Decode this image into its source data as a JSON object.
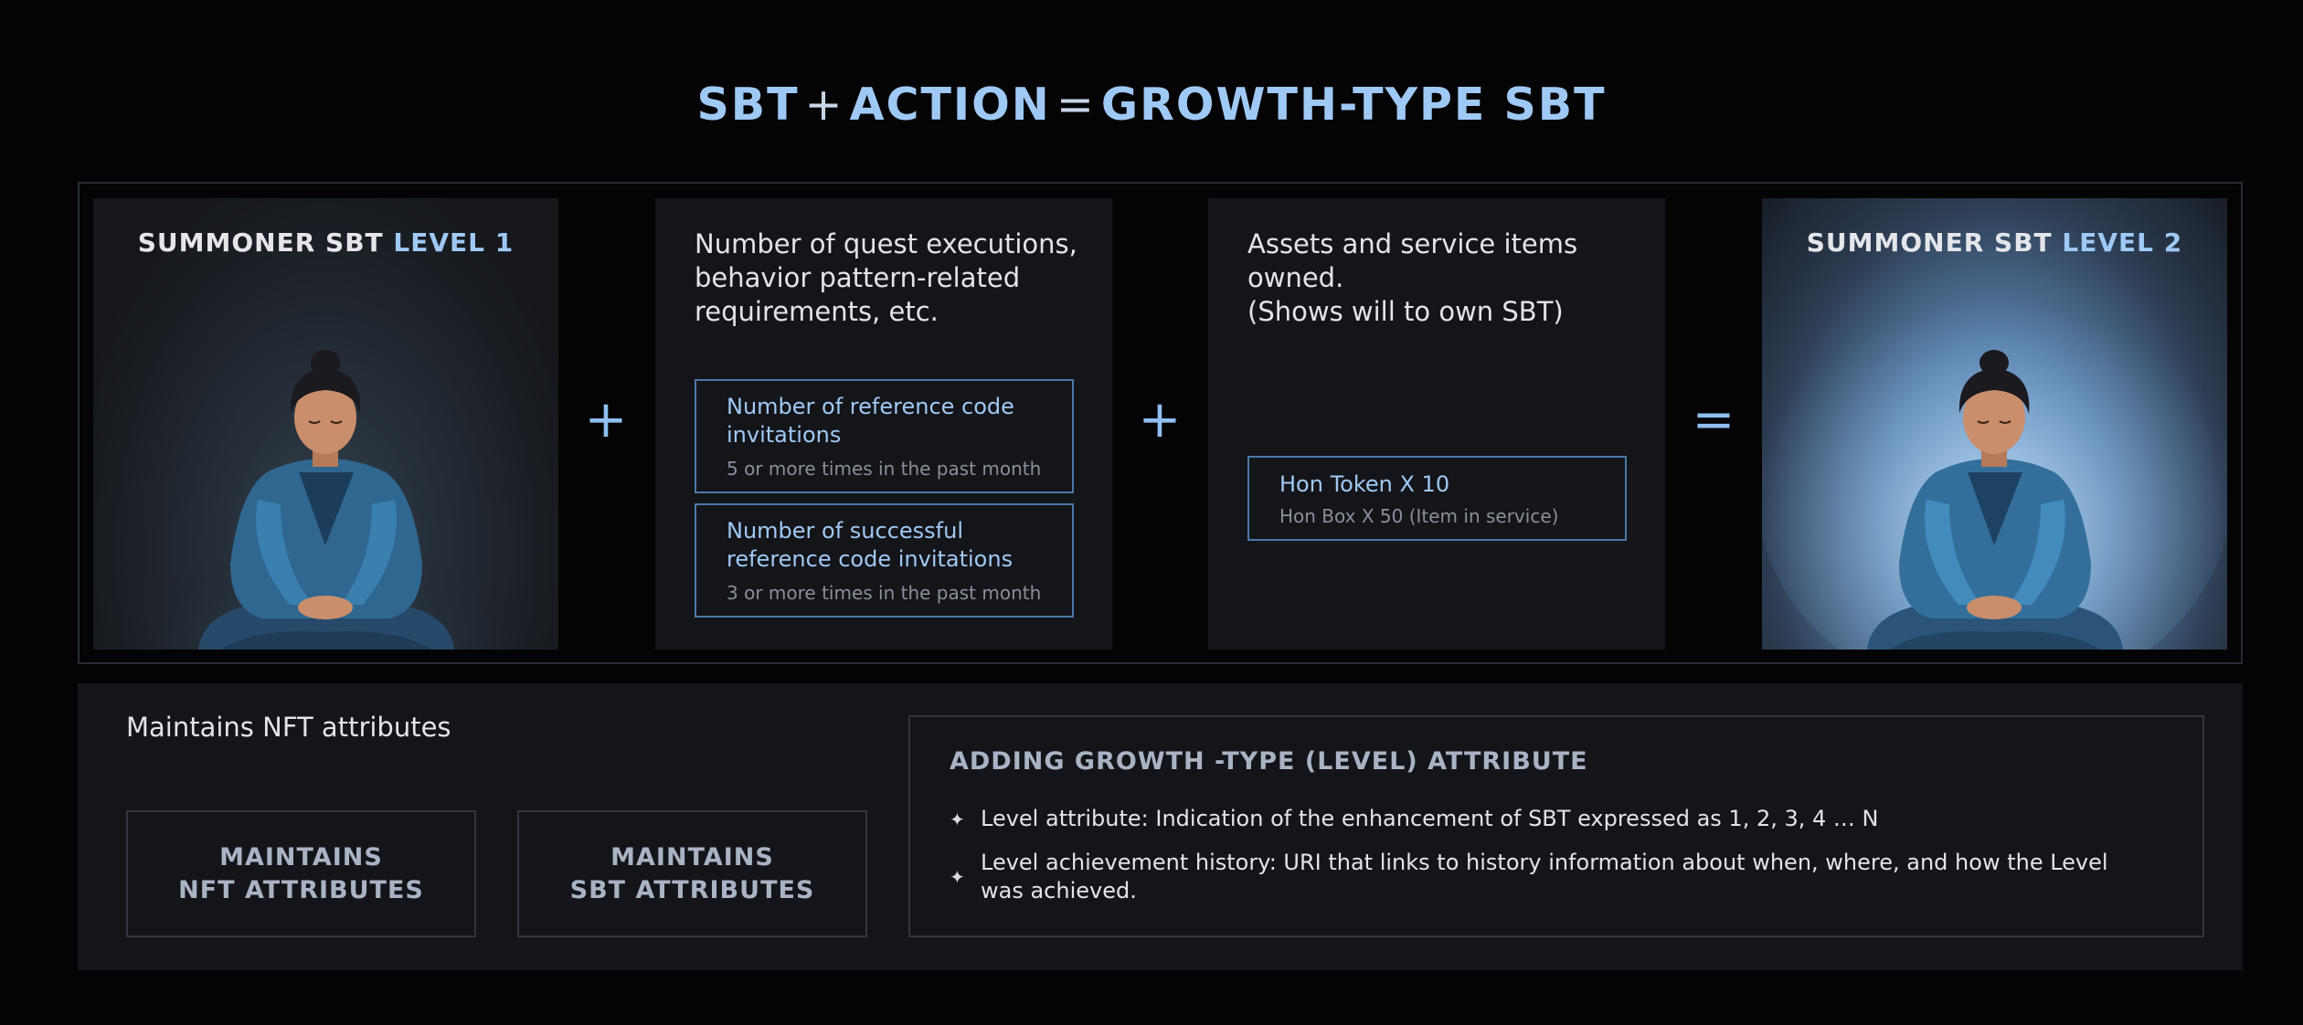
{
  "title": {
    "part1": "SBT",
    "op1": "+",
    "part2": "ACTION",
    "op2": "=",
    "part3": "GROWTH-TYPE SBT"
  },
  "cards": {
    "level1": {
      "title_prefix": "SUMMONER SBT",
      "level": "LEVEL 1"
    },
    "quest": {
      "description": "Number of quest executions, behavior pattern-related requirements, etc.",
      "items": [
        {
          "title": "Number of reference code invitations",
          "sub": "5 or more times in the past month"
        },
        {
          "title": "Number of successful reference code invitations",
          "sub": "3 or more times in the past month"
        }
      ]
    },
    "assets": {
      "description_line1": "Assets and service items owned.",
      "description_line2": "(Shows will to own SBT)",
      "item": {
        "title": "Hon Token X 10",
        "sub": "Hon Box X 50 (Item in service)"
      }
    },
    "level2": {
      "title_prefix": "SUMMONER SBT",
      "level": "LEVEL 2"
    }
  },
  "operators": {
    "plus1": "+",
    "plus2": "+",
    "equals": "="
  },
  "bottom": {
    "label": "Maintains NFT attributes",
    "nft_box": {
      "line1": "MAINTAINS",
      "line2": "NFT ATTRIBUTES"
    },
    "sbt_box": {
      "line1": "MAINTAINS",
      "line2": "SBT ATTRIBUTES"
    },
    "growth": {
      "title": "ADDING GROWTH -TYPE (LEVEL) ATTRIBUTE",
      "bullets": [
        "Level attribute: Indication of the enhancement of SBT expressed as 1, 2, 3, 4 … N",
        "Level achievement history: URI that links to history information about when, where, and how the Level was achieved."
      ]
    }
  },
  "colors": {
    "accent": "#9fc9f5",
    "background": "#040405",
    "card": "#141519",
    "box_border": "#4a78a8"
  },
  "icons": {
    "bullet": "sparkle-icon",
    "figure": "meditating-person-illustration"
  }
}
